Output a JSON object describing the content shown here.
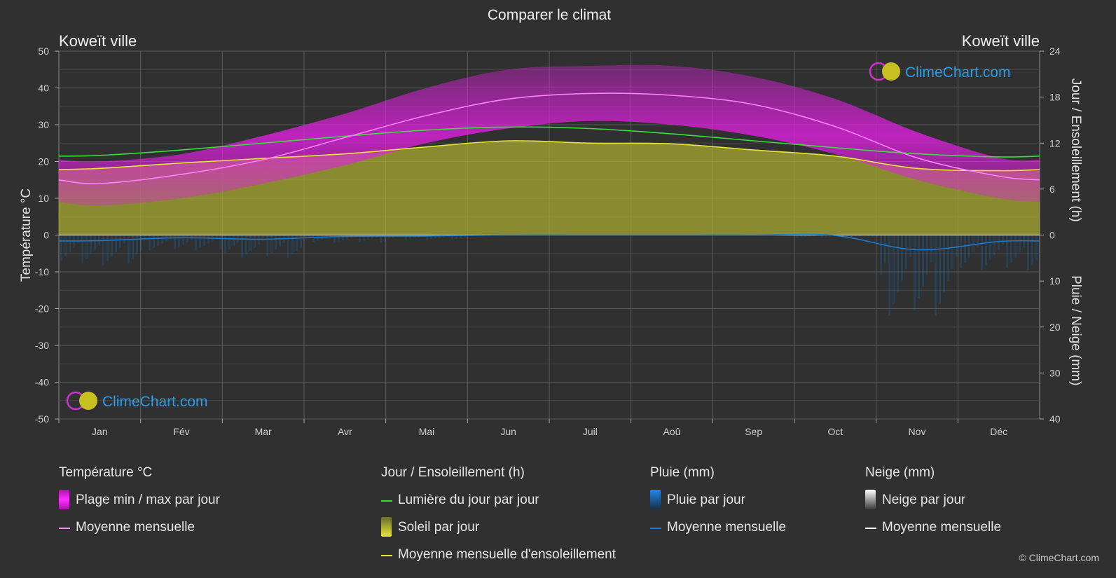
{
  "header": {
    "title": "Comparer le climat",
    "city_left": "Koweït ville",
    "city_right": "Koweït ville"
  },
  "axes": {
    "left_label": "Température °C",
    "right_top_label": "Jour / Ensoleillement (h)",
    "right_bottom_label": "Pluie / Neige (mm)"
  },
  "watermark": "ClimeChart.com",
  "copyright": "© ClimeChart.com",
  "legend": {
    "temperature": {
      "title": "Température °C",
      "range": "Plage min / max par jour",
      "mean": "Moyenne mensuelle"
    },
    "sun": {
      "title": "Jour / Ensoleillement (h)",
      "daylight": "Lumière du jour par jour",
      "sunshine": "Soleil par jour",
      "mean": "Moyenne mensuelle d'ensoleillement"
    },
    "rain": {
      "title": "Pluie (mm)",
      "daily": "Pluie par jour",
      "mean": "Moyenne mensuelle"
    },
    "snow": {
      "title": "Neige (mm)",
      "daily": "Neige par jour",
      "mean": "Moyenne mensuelle"
    }
  },
  "colors": {
    "background": "#303030",
    "temp_range": "#e020e0",
    "temp_mean": "#ff80ff",
    "daylight": "#3ddc3d",
    "sunshine_fill": "#a8a832",
    "sunshine_mean": "#e6e63a",
    "rain": "#1e78c8",
    "snow": "#ffffff"
  },
  "chart_data": {
    "type": "area",
    "categories": [
      "Jan",
      "Fév",
      "Mar",
      "Avr",
      "Mai",
      "Jun",
      "Juil",
      "Aoû",
      "Sep",
      "Oct",
      "Nov",
      "Déc"
    ],
    "temp_axis": {
      "min": -50,
      "max": 50,
      "ticks": [
        50,
        40,
        30,
        20,
        10,
        0,
        -10,
        -20,
        -30,
        -40,
        -50
      ]
    },
    "hours_axis": {
      "min": 0,
      "max": 24,
      "ticks": [
        24,
        18,
        12,
        6,
        0
      ]
    },
    "precip_axis": {
      "min": 0,
      "max": 40,
      "ticks": [
        0,
        10,
        20,
        30,
        40
      ]
    },
    "series": [
      {
        "name": "Moyenne mensuelle",
        "key": "temp_mean",
        "unit": "°C",
        "values": [
          14,
          16.5,
          20.5,
          26.5,
          32.5,
          37,
          38.5,
          38,
          35.5,
          29.5,
          21,
          16
        ]
      },
      {
        "name": "Plage min / max par jour",
        "key": "temp_max",
        "unit": "°C",
        "values": [
          20,
          22,
          27,
          33,
          40,
          45,
          46,
          46,
          43,
          37,
          28,
          21
        ]
      },
      {
        "key": "temp_min",
        "unit": "°C",
        "values": [
          8,
          10,
          14,
          19,
          25,
          29,
          31,
          30,
          27,
          22,
          15,
          10
        ]
      },
      {
        "name": "Lumière du jour par jour",
        "key": "daylight",
        "unit": "h",
        "values": [
          10.4,
          11.1,
          12,
          12.9,
          13.7,
          14.1,
          13.9,
          13.2,
          12.3,
          11.4,
          10.6,
          10.2
        ]
      },
      {
        "name": "Moyenne mensuelle d'ensoleillement",
        "key": "sunshine",
        "unit": "h",
        "values": [
          8.7,
          9.4,
          10,
          10.6,
          11.5,
          12.3,
          12,
          11.9,
          11.1,
          10.3,
          8.7,
          8.4
        ]
      },
      {
        "name": "Moyenne mensuelle",
        "key": "rain_mean",
        "unit": "mm",
        "values": [
          1.2,
          0.6,
          0.9,
          0.3,
          0.2,
          0,
          0,
          0,
          0,
          0.1,
          3.2,
          1.4
        ]
      }
    ]
  }
}
